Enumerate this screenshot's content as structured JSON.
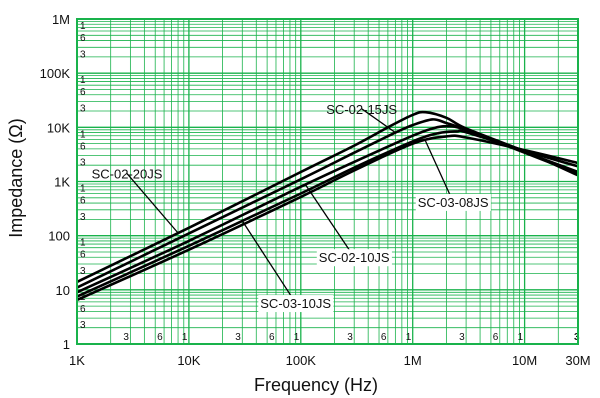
{
  "chart_data": {
    "type": "line",
    "xlabel": "Frequency (Hz)",
    "ylabel": "Impedance (Ω)",
    "x_scale": "log",
    "y_scale": "log",
    "xlim": [
      1000,
      30000000
    ],
    "ylim": [
      1,
      1000000
    ],
    "grid": true,
    "grid_color": "#19b24b",
    "line_color": "#000000",
    "x_ticks": [
      {
        "value": 1000,
        "label": "1K"
      },
      {
        "value": 10000,
        "label": "10K"
      },
      {
        "value": 100000,
        "label": "100K"
      },
      {
        "value": 1000000,
        "label": "1M"
      },
      {
        "value": 10000000,
        "label": "10M"
      },
      {
        "value": 30000000,
        "label": "30M"
      }
    ],
    "y_ticks": [
      {
        "value": 1,
        "label": "1"
      },
      {
        "value": 10,
        "label": "10"
      },
      {
        "value": 100,
        "label": "100"
      },
      {
        "value": 1000,
        "label": "1K"
      },
      {
        "value": 10000,
        "label": "10K"
      },
      {
        "value": 100000,
        "label": "100K"
      },
      {
        "value": 1000000,
        "label": "1M"
      }
    ],
    "x_minor_labels": [
      {
        "value": 3000,
        "label": "3"
      },
      {
        "value": 6000,
        "label": "6"
      },
      {
        "value": 10000,
        "label": "1"
      },
      {
        "value": 30000,
        "label": "3"
      },
      {
        "value": 60000,
        "label": "6"
      },
      {
        "value": 100000,
        "label": "1"
      },
      {
        "value": 300000,
        "label": "3"
      },
      {
        "value": 600000,
        "label": "6"
      },
      {
        "value": 1000000,
        "label": "1"
      },
      {
        "value": 3000000,
        "label": "3"
      },
      {
        "value": 6000000,
        "label": "6"
      },
      {
        "value": 10000000,
        "label": "1"
      },
      {
        "value": 30000000,
        "label": "3"
      }
    ],
    "y_minor_labels": [
      {
        "value": 3,
        "label": "3"
      },
      {
        "value": 6,
        "label": "6"
      },
      {
        "value": 10,
        "label": "1"
      },
      {
        "value": 30,
        "label": "3"
      },
      {
        "value": 60,
        "label": "6"
      },
      {
        "value": 100,
        "label": "1"
      },
      {
        "value": 300,
        "label": "3"
      },
      {
        "value": 600,
        "label": "6"
      },
      {
        "value": 1000,
        "label": "1"
      },
      {
        "value": 3000,
        "label": "3"
      },
      {
        "value": 6000,
        "label": "6"
      },
      {
        "value": 10000,
        "label": "1"
      },
      {
        "value": 30000,
        "label": "3"
      },
      {
        "value": 60000,
        "label": "6"
      },
      {
        "value": 100000,
        "label": "1"
      },
      {
        "value": 300000,
        "label": "3"
      },
      {
        "value": 600000,
        "label": "6"
      },
      {
        "value": 1000000,
        "label": "1"
      }
    ],
    "series": [
      {
        "name": "SC-02-20JS",
        "x": [
          1000,
          10000,
          100000,
          300000,
          600000,
          1000000,
          1300000,
          2000000,
          3000000,
          10000000,
          30000000
        ],
        "y": [
          14,
          140,
          1500,
          4600,
          10000,
          17000,
          19000,
          15000,
          9500,
          3600,
          1300
        ],
        "label_at": [
          2800,
          1400
        ]
      },
      {
        "name": "SC-02-15JS",
        "x": [
          1000,
          10000,
          100000,
          300000,
          700000,
          1000000,
          1500000,
          2000000,
          3000000,
          10000000,
          30000000
        ],
        "y": [
          11,
          110,
          1100,
          3400,
          8000,
          11000,
          14000,
          12000,
          9000,
          3400,
          1400
        ],
        "label_at": [
          350000,
          22000
        ]
      },
      {
        "name": "SC-02-10JS",
        "x": [
          1000,
          10000,
          100000,
          300000,
          1000000,
          1500000,
          2000000,
          3000000,
          10000000,
          30000000
        ],
        "y": [
          9,
          80,
          800,
          2300,
          7000,
          9500,
          10500,
          9000,
          3500,
          1500
        ],
        "label_at": [
          300000,
          40
        ],
        "label_bg": "#ffffff"
      },
      {
        "name": "SC-03-10JS",
        "x": [
          1000,
          10000,
          100000,
          300000,
          1000000,
          1700000,
          2500000,
          3000000,
          10000000,
          30000000
        ],
        "y": [
          7.5,
          65,
          600,
          1800,
          5500,
          7800,
          8400,
          8100,
          3700,
          1900
        ],
        "label_at": [
          90000,
          5.7
        ],
        "label_bg": "#ffffff"
      },
      {
        "name": "SC-03-08JS",
        "x": [
          1000,
          10000,
          100000,
          300000,
          1000000,
          2000000,
          3000000,
          10000000,
          30000000
        ],
        "y": [
          6.5,
          55,
          520,
          1600,
          5000,
          6800,
          6500,
          3800,
          2200
        ],
        "label_at": [
          2300000,
          420
        ],
        "label_bg": "#ffffff"
      }
    ]
  }
}
